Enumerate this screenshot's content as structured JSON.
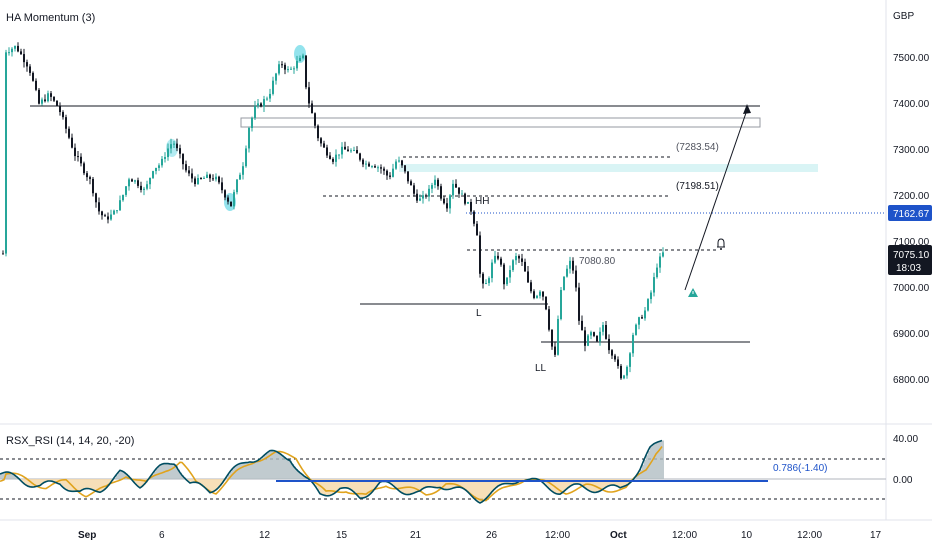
{
  "main_pane": {
    "indicator_title": "HA Momentum (3)",
    "currency": "GBP",
    "price_ticks": [
      "7500.00",
      "7400.00",
      "7300.00",
      "7200.00",
      "7100.00",
      "7000.00",
      "6900.00",
      "6800.00"
    ],
    "price_tags": {
      "level": "7162.67",
      "last_price": "7075.10",
      "countdown": "18:03"
    },
    "annotations": {
      "level_a": "(7283.54)",
      "level_b": "(7198.51)",
      "level_c": "7080.80",
      "label_hh": "HH",
      "label_l": "L",
      "label_ll": "LL"
    }
  },
  "rsi_pane": {
    "title": "RSX_RSI (14, 14, 20, -20)",
    "ticks": [
      "40.00",
      "0.00"
    ],
    "fib_label": "0.786(-1.40)"
  },
  "x_axis": {
    "labels": [
      "Sep",
      "6",
      "12",
      "15",
      "21",
      "26",
      "12:00",
      "Oct",
      "12:00",
      "10",
      "12:00",
      "17"
    ]
  },
  "colors": {
    "candle_up": "#26a69a",
    "candle_down": "#131722",
    "highlight": "#80deea",
    "rsi_fast": "#004d61",
    "rsi_slow": "#e0a31d",
    "fib_line": "#1e53c9",
    "level_tag": "#1e53c9",
    "price_tag": "#131722"
  },
  "chart_data": {
    "type": "candlestick",
    "ylim": [
      6750,
      7580
    ],
    "close_path": [
      [
        4,
        7515
      ],
      [
        15,
        7525
      ],
      [
        28,
        7480
      ],
      [
        38,
        7400
      ],
      [
        48,
        7420
      ],
      [
        58,
        7390
      ],
      [
        66,
        7340
      ],
      [
        74,
        7290
      ],
      [
        82,
        7260
      ],
      [
        90,
        7230
      ],
      [
        97,
        7170
      ],
      [
        104,
        7150
      ],
      [
        112,
        7160
      ],
      [
        120,
        7190
      ],
      [
        128,
        7240
      ],
      [
        136,
        7230
      ],
      [
        144,
        7210
      ],
      [
        152,
        7260
      ],
      [
        160,
        7270
      ],
      [
        166,
        7300
      ],
      [
        172,
        7320
      ],
      [
        178,
        7290
      ],
      [
        186,
        7250
      ],
      [
        195,
        7230
      ],
      [
        204,
        7240
      ],
      [
        214,
        7240
      ],
      [
        222,
        7210
      ],
      [
        230,
        7180
      ],
      [
        236,
        7230
      ],
      [
        242,
        7270
      ],
      [
        248,
        7350
      ],
      [
        254,
        7390
      ],
      [
        260,
        7400
      ],
      [
        268,
        7420
      ],
      [
        274,
        7460
      ],
      [
        280,
        7490
      ],
      [
        288,
        7470
      ],
      [
        296,
        7490
      ],
      [
        302,
        7500
      ],
      [
        306,
        7420
      ],
      [
        312,
        7370
      ],
      [
        318,
        7320
      ],
      [
        324,
        7300
      ],
      [
        332,
        7280
      ],
      [
        340,
        7300
      ],
      [
        348,
        7300
      ],
      [
        356,
        7290
      ],
      [
        364,
        7270
      ],
      [
        372,
        7270
      ],
      [
        380,
        7260
      ],
      [
        388,
        7240
      ],
      [
        396,
        7280
      ],
      [
        402,
        7260
      ],
      [
        408,
        7230
      ],
      [
        414,
        7200
      ],
      [
        420,
        7190
      ],
      [
        428,
        7210
      ],
      [
        434,
        7240
      ],
      [
        440,
        7200
      ],
      [
        446,
        7180
      ],
      [
        452,
        7230
      ],
      [
        458,
        7210
      ],
      [
        464,
        7190
      ],
      [
        470,
        7170
      ],
      [
        476,
        7120
      ],
      [
        480,
        7000
      ],
      [
        486,
        7010
      ],
      [
        492,
        7060
      ],
      [
        498,
        7070
      ],
      [
        504,
        7000
      ],
      [
        510,
        7050
      ],
      [
        516,
        7070
      ],
      [
        522,
        7050
      ],
      [
        528,
        7000
      ],
      [
        534,
        6980
      ],
      [
        540,
        7000
      ],
      [
        546,
        6950
      ],
      [
        550,
        6880
      ],
      [
        554,
        6850
      ],
      [
        558,
        6960
      ],
      [
        562,
        7020
      ],
      [
        566,
        7040
      ],
      [
        570,
        7060
      ],
      [
        574,
        7020
      ],
      [
        578,
        6930
      ],
      [
        584,
        6880
      ],
      [
        590,
        6900
      ],
      [
        596,
        6880
      ],
      [
        602,
        6920
      ],
      [
        608,
        6870
      ],
      [
        614,
        6850
      ],
      [
        620,
        6800
      ],
      [
        626,
        6830
      ],
      [
        632,
        6900
      ],
      [
        638,
        6930
      ],
      [
        644,
        6950
      ],
      [
        650,
        6990
      ],
      [
        656,
        7050
      ],
      [
        662,
        7075
      ]
    ],
    "levels": [
      {
        "price": 7283.54,
        "label": "(7283.54)"
      },
      {
        "price": 7198.51,
        "label": "(7198.51)"
      },
      {
        "price": 7080.8,
        "label": "7080.80"
      },
      {
        "price": 7162.67,
        "label": "7162.67"
      }
    ],
    "rsi": {
      "ylim": [
        -30,
        50
      ],
      "bands": [
        20,
        -20
      ],
      "fib_level": -1.4
    }
  }
}
